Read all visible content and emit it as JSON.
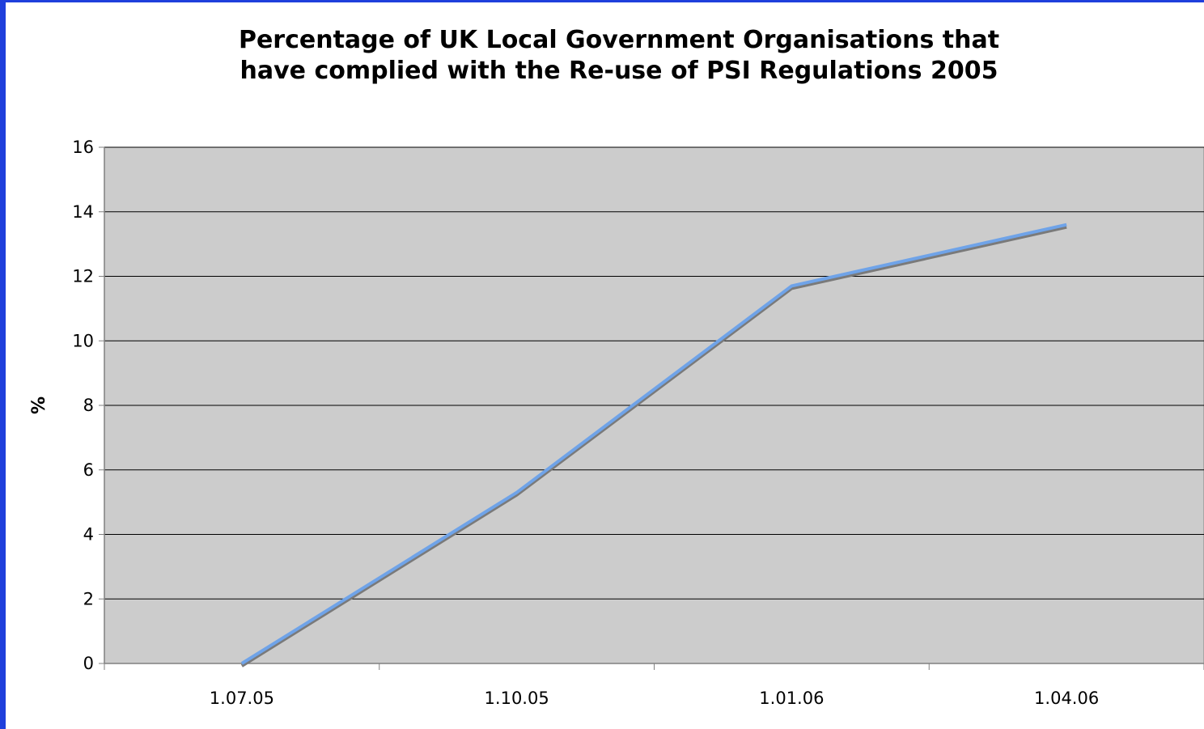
{
  "chart_data": {
    "type": "line",
    "title": "Percentage of UK Local Government Organisations that\nhave complied with the Re-use of PSI Regulations 2005",
    "xlabel": "",
    "ylabel": "%",
    "categories": [
      "1.07.05",
      "1.10.05",
      "1.01.06",
      "1.04.06"
    ],
    "series": [
      {
        "values": [
          0,
          5.3,
          11.7,
          13.6
        ],
        "color": "#6fa3e8"
      }
    ],
    "ylim": [
      0,
      16
    ],
    "yticks": [
      "0",
      "2",
      "4",
      "6",
      "8",
      "10",
      "12",
      "14",
      "16"
    ],
    "grid": true,
    "legend": "none",
    "plot_background": "#cccccc",
    "frame_color": "#1f3fdc"
  }
}
